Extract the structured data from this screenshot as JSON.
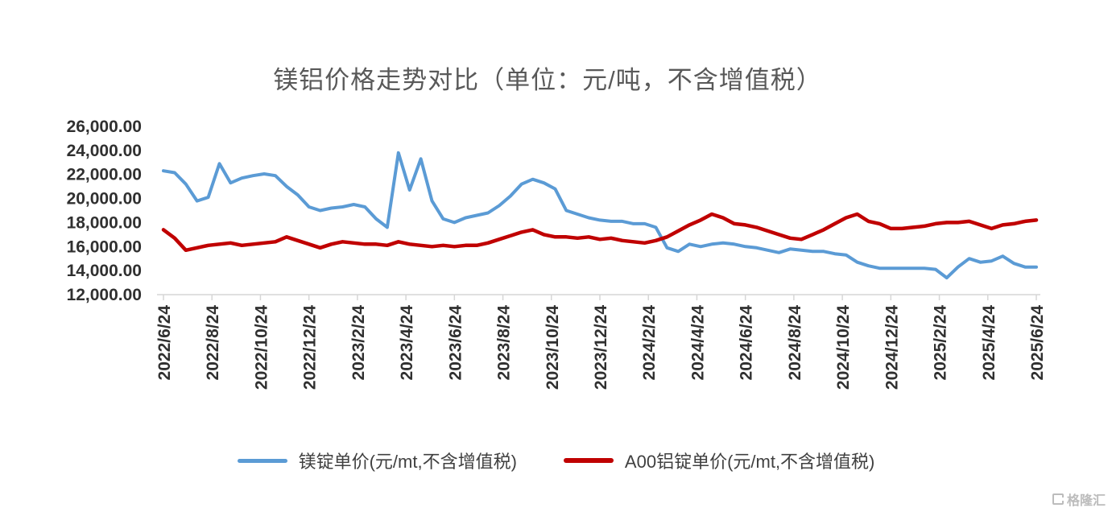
{
  "title": "镁铝价格走势对比（单位：元/吨，不含增值税）",
  "watermark": "格隆汇",
  "colors": {
    "magnesium_line": "#5B9BD5",
    "aluminum_line": "#C00000",
    "axis": "#d6d6d6",
    "tick_text": "#303030",
    "title_text": "#595959"
  },
  "chart_data": {
    "type": "line",
    "title": "镁铝价格走势对比（单位：元/吨，不含增值税）",
    "xlabel": "",
    "ylabel": "",
    "ylim": [
      12000,
      26000
    ],
    "grid": false,
    "legend_position": "bottom",
    "y_tick_values": [
      12000,
      14000,
      16000,
      18000,
      20000,
      22000,
      24000,
      26000
    ],
    "y_tick_labels": [
      "12,000.00",
      "14,000.00",
      "16,000.00",
      "18,000.00",
      "20,000.00",
      "22,000.00",
      "24,000.00",
      "26,000.00"
    ],
    "x_tick_labels": [
      "2022/6/24",
      "2022/8/24",
      "2022/10/24",
      "2022/12/24",
      "2023/2/24",
      "2023/4/24",
      "2023/6/24",
      "2023/8/24",
      "2023/10/24",
      "2023/12/24",
      "2024/2/24",
      "2024/4/24",
      "2024/6/24",
      "2024/8/24",
      "2024/10/24",
      "2024/12/24",
      "2025/2/24",
      "2025/4/24",
      "2025/6/24"
    ],
    "series": [
      {
        "key": "magnesium",
        "name": "镁锭单价(元/mt,不含增值税)",
        "color": "#5B9BD5",
        "width": 4,
        "values": [
          22300,
          22150,
          21200,
          19800,
          20100,
          22900,
          21300,
          21700,
          21900,
          22050,
          21900,
          21000,
          20300,
          19300,
          19000,
          19200,
          19300,
          19500,
          19300,
          18300,
          17600,
          23800,
          20700,
          23300,
          19800,
          18300,
          18000,
          18400,
          18600,
          18800,
          19400,
          20200,
          21200,
          21600,
          21300,
          20800,
          19000,
          18700,
          18400,
          18200,
          18100,
          18100,
          17900,
          17900,
          17600,
          15900,
          15600,
          16200,
          16000,
          16200,
          16300,
          16200,
          16000,
          15900,
          15700,
          15500,
          15800,
          15700,
          15600,
          15600,
          15400,
          15300,
          14700,
          14400,
          14200,
          14200,
          14200,
          14200,
          14200,
          14100,
          13400,
          14300,
          15000,
          14700,
          14800,
          15200,
          14600,
          14300,
          14300
        ]
      },
      {
        "key": "aluminum",
        "name": "A00铝锭单价(元/mt,不含增值税)",
        "color": "#C00000",
        "width": 4.5,
        "values": [
          17400,
          16700,
          15700,
          15900,
          16100,
          16200,
          16300,
          16100,
          16200,
          16300,
          16400,
          16800,
          16500,
          16200,
          15900,
          16200,
          16400,
          16300,
          16200,
          16200,
          16100,
          16400,
          16200,
          16100,
          16000,
          16100,
          16000,
          16100,
          16100,
          16300,
          16600,
          16900,
          17200,
          17400,
          17000,
          16800,
          16800,
          16700,
          16800,
          16600,
          16700,
          16500,
          16400,
          16300,
          16500,
          16800,
          17300,
          17800,
          18200,
          18700,
          18400,
          17900,
          17800,
          17600,
          17300,
          17000,
          16700,
          16600,
          17000,
          17400,
          17900,
          18400,
          18700,
          18100,
          17900,
          17500,
          17500,
          17600,
          17700,
          17900,
          18000,
          18000,
          18100,
          17800,
          17500,
          17800,
          17900,
          18100,
          18200
        ]
      }
    ]
  },
  "legend": {
    "items": [
      {
        "label": "镁锭单价(元/mt,不含增值税)"
      },
      {
        "label": "A00铝锭单价(元/mt,不含增值税)"
      }
    ]
  }
}
